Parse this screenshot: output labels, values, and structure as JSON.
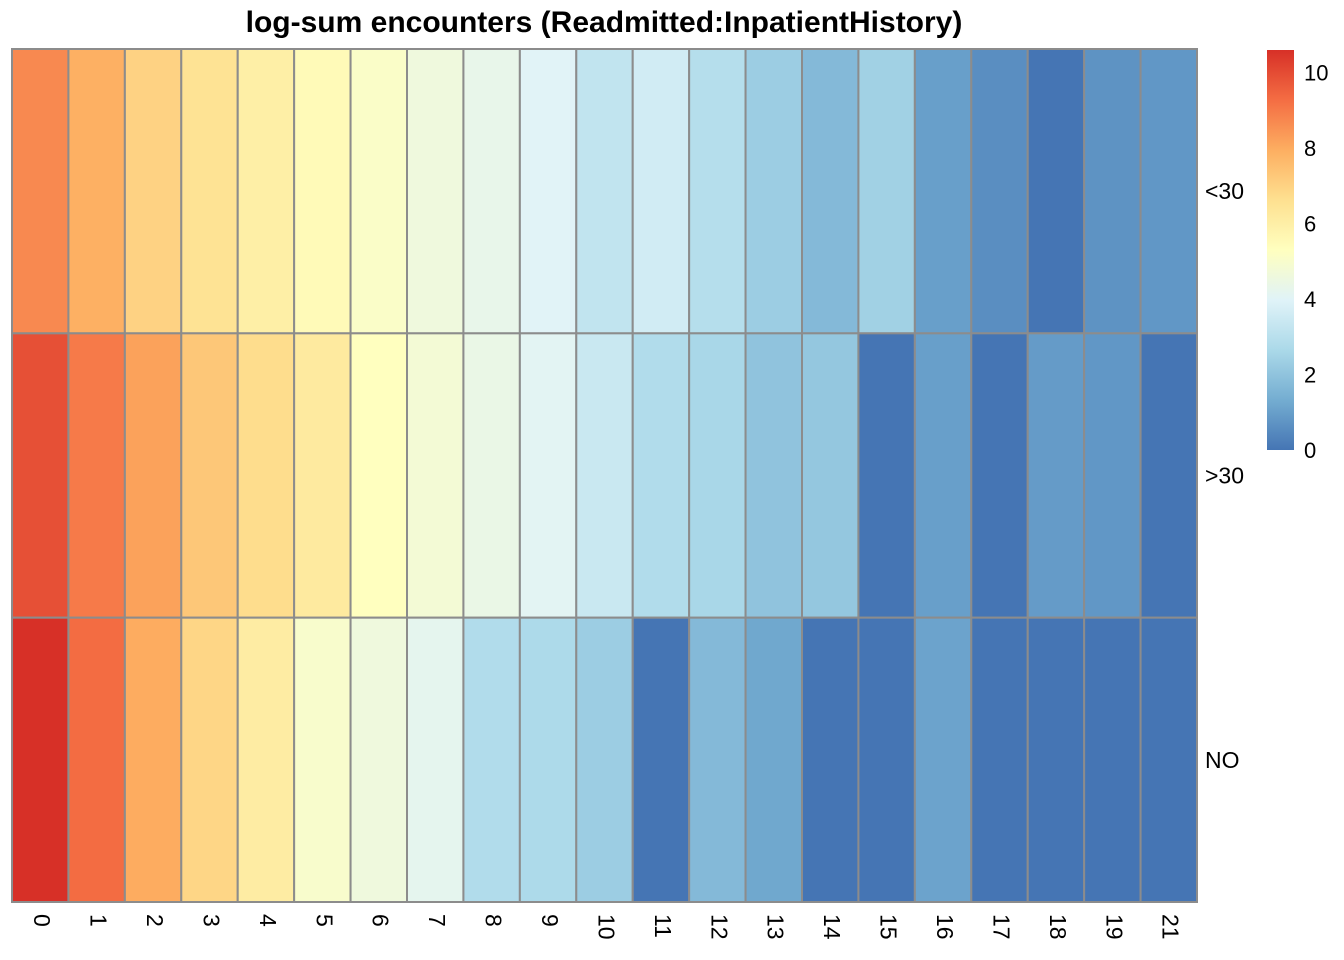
{
  "chart_data": {
    "type": "heatmap",
    "title": "log-sum encounters (Readmitted:InpatientHistory)",
    "columns": [
      "0",
      "1",
      "2",
      "3",
      "4",
      "5",
      "6",
      "7",
      "8",
      "9",
      "10",
      "11",
      "12",
      "13",
      "14",
      "15",
      "16",
      "17",
      "18",
      "19",
      "21"
    ],
    "rows": [
      "<30",
      ">30",
      "NO"
    ],
    "values": [
      [
        8.7,
        7.9,
        7.0,
        6.5,
        6.0,
        5.5,
        5.1,
        4.6,
        4.3,
        4.0,
        3.2,
        3.6,
        2.9,
        2.3,
        1.7,
        2.4,
        1.0,
        0.6,
        0.0,
        0.7,
        0.8
      ],
      [
        9.9,
        9.0,
        8.2,
        7.3,
        6.7,
        6.2,
        5.3,
        4.8,
        4.4,
        4.1,
        3.4,
        2.8,
        2.6,
        2.0,
        2.1,
        0.0,
        1.0,
        0.0,
        0.9,
        0.8,
        0.0
      ],
      [
        10.6,
        9.3,
        8.0,
        6.9,
        6.1,
        5.0,
        4.6,
        4.2,
        2.8,
        2.7,
        2.3,
        0.0,
        1.7,
        1.2,
        0.0,
        0.0,
        1.1,
        0.0,
        0.0,
        0.0,
        0.0
      ]
    ],
    "color_scale": {
      "min": 0,
      "max": 10.6,
      "ticks": [
        "0",
        "2",
        "4",
        "6",
        "8",
        "10"
      ],
      "colors": [
        "#4575B4",
        "#74ADD1",
        "#ABD9E9",
        "#E0F3F8",
        "#FFFFBF",
        "#FEE090",
        "#FDAE61",
        "#F46D43",
        "#D73027"
      ]
    },
    "legend_position": "top-right",
    "grid_color": "#8c8c8c"
  }
}
